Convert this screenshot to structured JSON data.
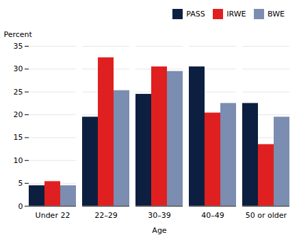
{
  "chart_data": {
    "type": "bar",
    "categories": [
      "Under 22",
      "22–29",
      "30–39",
      "40–49",
      "50 or older"
    ],
    "series": [
      {
        "name": "PASS",
        "color": "#0d1f40",
        "values": [
          4.5,
          19.5,
          24.5,
          30.5,
          22.5
        ]
      },
      {
        "name": "IRWE",
        "color": "#e02020",
        "values": [
          5.4,
          32.5,
          30.5,
          20.4,
          13.5
        ]
      },
      {
        "name": "BWE",
        "color": "#7b8db0",
        "values": [
          4.5,
          25.3,
          29.5,
          22.5,
          19.5
        ]
      }
    ],
    "xlabel": "Age",
    "ylabel": "Percent",
    "ylim": [
      0,
      35
    ],
    "yticks": [
      0,
      5,
      10,
      15,
      20,
      25,
      30,
      35
    ],
    "grid": true,
    "legend": "upper right"
  }
}
